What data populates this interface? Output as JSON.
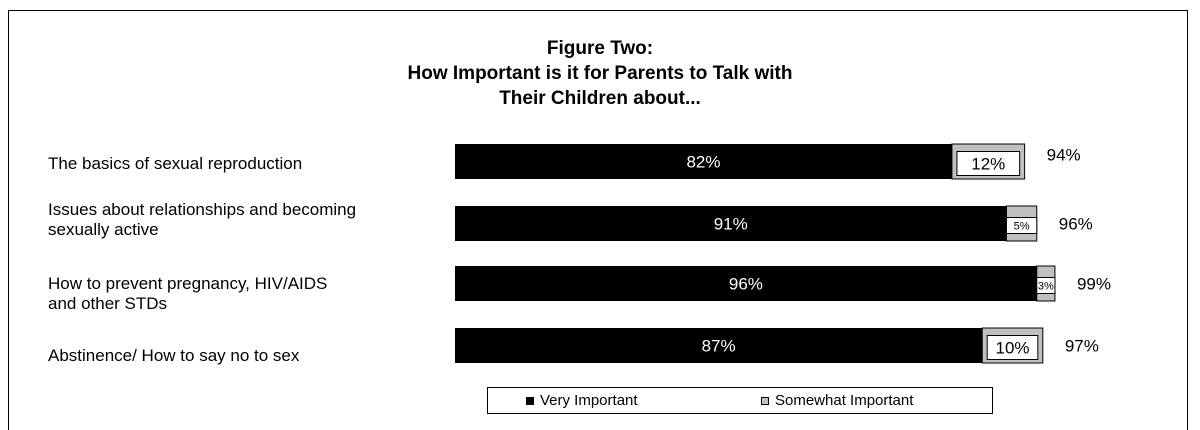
{
  "title_lines": [
    "Figure Two:",
    "How Important is it for Parents to Talk with",
    "Their Children about..."
  ],
  "chart_data": {
    "type": "bar",
    "stacked": true,
    "orientation": "horizontal",
    "categories": [
      [
        "The basics of sexual reproduction"
      ],
      [
        "Issues about relationships and becoming",
        "sexually active"
      ],
      [
        "How to prevent pregnancy, HIV/AIDS",
        "and other STDs"
      ],
      [
        "Abstinence/ How to say no to sex"
      ]
    ],
    "series": [
      {
        "name": "Very Important",
        "values": [
          82,
          91,
          96,
          87
        ],
        "labels": [
          "82%",
          "91%",
          "96%",
          "87%"
        ],
        "color": "#000000"
      },
      {
        "name": "Somewhat Important",
        "values": [
          12,
          5,
          3,
          10
        ],
        "labels": [
          "12%",
          "5%",
          "3%",
          "10%"
        ],
        "color": "#c0c0c0"
      }
    ],
    "totals": [
      "94%",
      "96%",
      "99%",
      "97%"
    ],
    "xlim": [
      0,
      100
    ],
    "legend_position": "bottom",
    "grid": false
  },
  "legend": {
    "items": [
      {
        "label": "Very Important",
        "color": "#000000"
      },
      {
        "label": "Somewhat Important",
        "color": "#c0c0c0"
      }
    ]
  }
}
